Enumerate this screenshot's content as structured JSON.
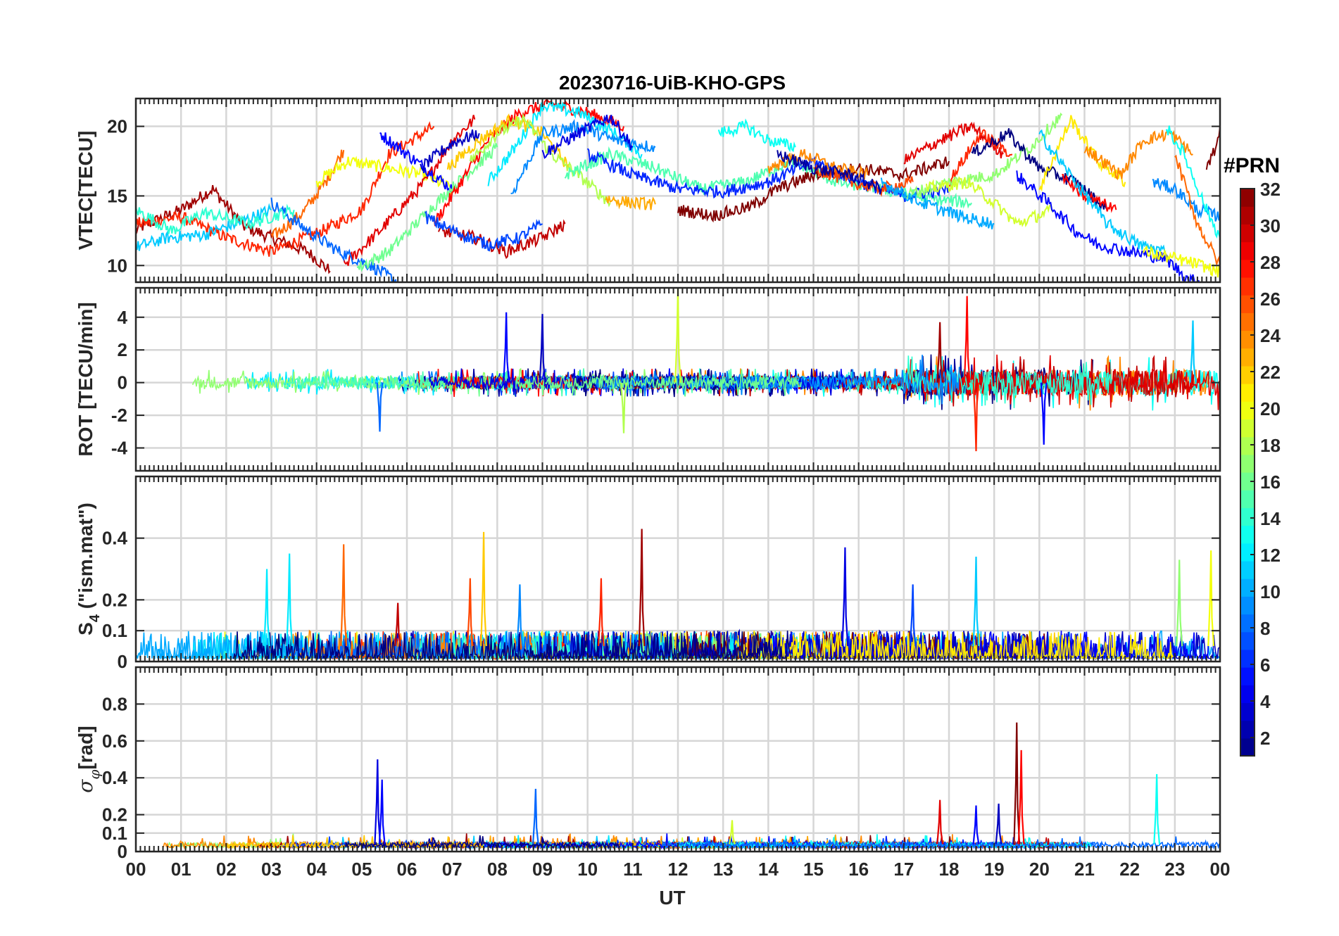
{
  "figure": {
    "title": "20230716-UiB-KHO-GPS",
    "xlabel": "UT",
    "x_ticks": [
      "00",
      "01",
      "02",
      "03",
      "04",
      "05",
      "06",
      "07",
      "08",
      "09",
      "10",
      "11",
      "12",
      "13",
      "14",
      "15",
      "16",
      "17",
      "18",
      "19",
      "20",
      "21",
      "22",
      "23",
      "00"
    ],
    "xlim": [
      0,
      24
    ]
  },
  "colorbar": {
    "title": "#PRN",
    "range": [
      1,
      32
    ],
    "ticks": [
      2,
      4,
      6,
      8,
      10,
      12,
      14,
      16,
      18,
      20,
      22,
      24,
      26,
      28,
      30,
      32
    ],
    "colormap": "jet"
  },
  "chart_data": [
    {
      "id": "vtec",
      "type": "line",
      "ylabel": "VTEC[TECU]",
      "ylim": [
        8.8,
        22
      ],
      "y_ticks": [
        10,
        15,
        20
      ],
      "grid": true,
      "series": [
        {
          "prn": 31,
          "t": [
            0.0,
            1.0,
            1.7,
            2.4,
            3.0,
            3.8,
            4.3
          ],
          "v": [
            12.6,
            14.0,
            15.5,
            12.8,
            12.0,
            11.0,
            9.6
          ]
        },
        {
          "prn": 27,
          "t": [
            0.0,
            1.0,
            2.0,
            3.0,
            4.2,
            5.0,
            5.6,
            6.6
          ],
          "v": [
            13.0,
            13.5,
            12.0,
            11.0,
            12.6,
            14.0,
            18.0,
            20.0
          ]
        },
        {
          "prn": 25,
          "t": [
            3.0,
            3.7,
            4.2,
            4.6
          ],
          "v": [
            12.0,
            13.8,
            16.0,
            18.3
          ]
        },
        {
          "prn": 20,
          "t": [
            4.0,
            4.7,
            5.6,
            6.4,
            7.0
          ],
          "v": [
            16.0,
            17.5,
            17.0,
            16.5,
            15.5
          ]
        },
        {
          "prn": 29,
          "t": [
            4.6,
            5.4,
            6.4,
            7.0,
            7.5
          ],
          "v": [
            10.0,
            12.5,
            16.0,
            19.0,
            20.5
          ]
        },
        {
          "prn": 5,
          "t": [
            5.4,
            6.0,
            6.6,
            7.0
          ],
          "v": [
            19.5,
            18.0,
            16.5,
            15.5
          ]
        },
        {
          "prn": 8,
          "t": [
            3.0,
            3.8,
            4.5,
            5.2,
            5.8
          ],
          "v": [
            14.5,
            12.5,
            11.0,
            10.0,
            8.8
          ]
        },
        {
          "prn": 11,
          "t": [
            0.0,
            0.7,
            1.5,
            2.2,
            3.0
          ],
          "v": [
            11.3,
            12.0,
            12.2,
            13.0,
            14.0
          ]
        },
        {
          "prn": 14,
          "t": [
            0.0,
            0.8,
            1.5,
            2.5,
            3.5
          ],
          "v": [
            14.0,
            12.5,
            13.8,
            13.0,
            14.0
          ]
        },
        {
          "prn": 16,
          "t": [
            4.9,
            5.6,
            6.5,
            7.3,
            8.0
          ],
          "v": [
            9.8,
            11.0,
            14.0,
            16.5,
            18.5
          ]
        },
        {
          "prn": 3,
          "t": [
            6.3,
            7.0,
            7.6
          ],
          "v": [
            17.0,
            18.8,
            19.5
          ]
        },
        {
          "prn": 28,
          "t": [
            6.6,
            7.2,
            7.8,
            8.5,
            9.2,
            10.0,
            10.8
          ],
          "v": [
            13.0,
            16.0,
            19.0,
            21.0,
            21.6,
            21.0,
            20.0
          ]
        },
        {
          "prn": 22,
          "t": [
            6.9,
            7.6,
            8.3,
            9.0,
            9.6
          ],
          "v": [
            17.0,
            19.0,
            20.5,
            19.5,
            17.0
          ]
        },
        {
          "prn": 12,
          "t": [
            7.8,
            8.4,
            9.0,
            9.8,
            10.6,
            11.2
          ],
          "v": [
            16.0,
            18.5,
            21.5,
            21.0,
            19.5,
            18.0
          ]
        },
        {
          "prn": 18,
          "t": [
            7.4,
            8.0,
            8.6,
            9.2,
            9.8,
            10.5
          ],
          "v": [
            17.5,
            19.5,
            20.5,
            18.0,
            16.5,
            14.5
          ]
        },
        {
          "prn": 9,
          "t": [
            8.3,
            9.0,
            9.8,
            10.6,
            11.5
          ],
          "v": [
            15.0,
            19.5,
            20.0,
            19.0,
            18.5
          ]
        },
        {
          "prn": 4,
          "t": [
            9.0,
            9.8,
            10.5,
            11.0
          ],
          "v": [
            18.0,
            19.5,
            20.7,
            18.5
          ]
        },
        {
          "prn": 30,
          "t": [
            6.7,
            7.5,
            8.2,
            9.0,
            9.5
          ],
          "v": [
            12.5,
            12.0,
            11.0,
            12.0,
            13.0
          ]
        },
        {
          "prn": 7,
          "t": [
            6.4,
            7.0,
            7.8,
            8.5,
            9.0
          ],
          "v": [
            13.5,
            12.5,
            11.5,
            12.0,
            13.0
          ]
        },
        {
          "prn": 15,
          "t": [
            9.5,
            10.5,
            11.5,
            12.5,
            13.5,
            14.5,
            15.5,
            16.5,
            17.5,
            18.5
          ],
          "v": [
            16.5,
            18.0,
            17.0,
            15.5,
            16.0,
            17.5,
            16.0,
            15.5,
            14.8,
            14.5
          ]
        },
        {
          "prn": 23,
          "t": [
            10.4,
            11.0,
            11.5
          ],
          "v": [
            14.8,
            14.5,
            14.4
          ]
        },
        {
          "prn": 6,
          "t": [
            10.0,
            11.0,
            12.0,
            13.0,
            14.0,
            15.0,
            16.0,
            17.0,
            18.0
          ],
          "v": [
            18.0,
            16.5,
            15.5,
            15.3,
            16.0,
            17.5,
            16.0,
            15.0,
            15.5
          ]
        },
        {
          "prn": 32,
          "t": [
            12.0,
            12.8,
            13.6,
            14.2,
            15.0,
            16.0,
            17.0,
            18.0
          ],
          "v": [
            14.0,
            13.6,
            14.2,
            15.5,
            16.5,
            17.0,
            16.5,
            17.5
          ]
        },
        {
          "prn": 13,
          "t": [
            12.9,
            13.5,
            14.0,
            14.6
          ],
          "v": [
            19.5,
            20.0,
            19.0,
            18.5
          ]
        },
        {
          "prn": 24,
          "t": [
            14.0,
            14.8,
            15.5,
            16.2
          ],
          "v": [
            17.0,
            18.0,
            17.0,
            16.5
          ]
        },
        {
          "prn": 26,
          "t": [
            15.0,
            15.8,
            16.5,
            17.2
          ],
          "v": [
            17.0,
            16.0,
            15.5,
            16.0
          ]
        },
        {
          "prn": 2,
          "t": [
            14.2,
            15.0,
            15.8,
            16.5
          ],
          "v": [
            18.0,
            17.0,
            16.5,
            15.5
          ]
        },
        {
          "prn": 29,
          "t": [
            17.0,
            17.8,
            18.5,
            19.2
          ],
          "v": [
            17.5,
            19.0,
            20.0,
            18.0
          ]
        },
        {
          "prn": 27,
          "t": [
            18.0,
            18.7,
            19.4
          ],
          "v": [
            16.0,
            19.5,
            18.0
          ]
        },
        {
          "prn": 17,
          "t": [
            17.0,
            18.0,
            19.0,
            19.8,
            20.5
          ],
          "v": [
            15.0,
            16.0,
            16.5,
            18.5,
            20.8
          ]
        },
        {
          "prn": 19,
          "t": [
            17.5,
            18.4,
            19.0,
            19.5,
            20.3
          ],
          "v": [
            15.5,
            16.0,
            14.5,
            13.0,
            14.0
          ]
        },
        {
          "prn": 10,
          "t": [
            16.5,
            17.4,
            18.3,
            19.0
          ],
          "v": [
            16.0,
            14.5,
            13.5,
            13.0
          ]
        },
        {
          "prn": 1,
          "t": [
            18.5,
            19.3,
            20.0,
            20.8,
            21.5
          ],
          "v": [
            18.0,
            19.5,
            17.0,
            16.0,
            14.0
          ]
        },
        {
          "prn": 5,
          "t": [
            19.5,
            20.2,
            20.8,
            21.3,
            22.0,
            22.8,
            23.3,
            23.6
          ],
          "v": [
            16.5,
            14.5,
            12.5,
            11.5,
            11.0,
            10.5,
            9.0,
            8.8
          ]
        },
        {
          "prn": 21,
          "t": [
            20.0,
            20.7,
            21.3,
            21.9
          ],
          "v": [
            15.5,
            20.5,
            17.5,
            16.0
          ]
        },
        {
          "prn": 28,
          "t": [
            20.5,
            21.0,
            21.7
          ],
          "v": [
            16.5,
            15.0,
            14.0
          ]
        },
        {
          "prn": 11,
          "t": [
            20.0,
            20.8,
            21.5,
            22.2,
            22.8
          ],
          "v": [
            19.5,
            16.0,
            13.0,
            11.5,
            11.0
          ]
        },
        {
          "prn": 24,
          "t": [
            21.0,
            21.8,
            22.3,
            22.9,
            23.4
          ],
          "v": [
            18.5,
            16.5,
            19.0,
            19.5,
            18.0
          ]
        },
        {
          "prn": 9,
          "t": [
            22.5,
            23.0,
            23.5,
            24.0
          ],
          "v": [
            16.0,
            15.5,
            14.0,
            13.5
          ]
        },
        {
          "prn": 13,
          "t": [
            22.8,
            23.2,
            23.7,
            24.0
          ],
          "v": [
            20.0,
            18.0,
            14.0,
            12.0
          ]
        },
        {
          "prn": 20,
          "t": [
            22.3,
            23.0,
            23.6,
            24.0
          ],
          "v": [
            11.0,
            10.5,
            10.0,
            9.5
          ]
        },
        {
          "prn": 25,
          "t": [
            23.0,
            23.5,
            24.0
          ],
          "v": [
            18.0,
            13.0,
            10.0
          ]
        },
        {
          "prn": 32,
          "t": [
            23.7,
            23.9,
            24.0
          ],
          "v": [
            17.0,
            18.5,
            20.0
          ]
        }
      ]
    },
    {
      "id": "rot",
      "type": "line",
      "ylabel": "ROT [TECU/min]",
      "ylim": [
        -5.4,
        5.8
      ],
      "y_ticks": [
        -4,
        -2,
        0,
        2,
        4
      ],
      "grid": true,
      "note": "noise around 0 with amplitude growing after 17 UT",
      "spikes": [
        {
          "prn": 5,
          "t": 8.2,
          "v": 4.3
        },
        {
          "prn": 3,
          "t": 9.0,
          "v": 4.2
        },
        {
          "prn": 19,
          "t": 12.0,
          "v": 5.8
        },
        {
          "prn": 28,
          "t": 18.4,
          "v": 5.3
        },
        {
          "prn": 27,
          "t": 18.6,
          "v": -4.2
        },
        {
          "prn": 31,
          "t": 17.8,
          "v": 3.7
        },
        {
          "prn": 11,
          "t": 23.4,
          "v": 3.8
        },
        {
          "prn": 8,
          "t": 5.4,
          "v": -3.0
        },
        {
          "prn": 5,
          "t": 20.1,
          "v": -3.8
        },
        {
          "prn": 18,
          "t": 10.8,
          "v": -3.1
        }
      ]
    },
    {
      "id": "s4",
      "type": "line",
      "ylabel": "S4 (\"ism.mat\")",
      "ylim": [
        0,
        0.6
      ],
      "y_ticks": [
        0,
        0.1,
        0.2,
        0.4
      ],
      "tick_labels": [
        "0",
        "0.1",
        "0.2",
        "0.4"
      ],
      "grid": true,
      "spikes": [
        {
          "prn": 12,
          "t": 2.9,
          "v": 0.3
        },
        {
          "prn": 12,
          "t": 3.4,
          "v": 0.35
        },
        {
          "prn": 25,
          "t": 4.6,
          "v": 0.38
        },
        {
          "prn": 30,
          "t": 5.8,
          "v": 0.19
        },
        {
          "prn": 22,
          "t": 7.7,
          "v": 0.42
        },
        {
          "prn": 26,
          "t": 7.4,
          "v": 0.27
        },
        {
          "prn": 9,
          "t": 8.5,
          "v": 0.25
        },
        {
          "prn": 27,
          "t": 10.3,
          "v": 0.27
        },
        {
          "prn": 31,
          "t": 11.2,
          "v": 0.43
        },
        {
          "prn": 4,
          "t": 15.7,
          "v": 0.37
        },
        {
          "prn": 7,
          "t": 17.2,
          "v": 0.25
        },
        {
          "prn": 11,
          "t": 18.6,
          "v": 0.34
        },
        {
          "prn": 17,
          "t": 23.1,
          "v": 0.33
        },
        {
          "prn": 20,
          "t": 23.8,
          "v": 0.36
        }
      ]
    },
    {
      "id": "sigma_phi",
      "type": "line",
      "ylabel": "σφ[rad]",
      "ylim": [
        0,
        1.0
      ],
      "y_ticks": [
        0,
        0.1,
        0.2,
        0.4,
        0.6,
        0.8
      ],
      "tick_labels": [
        "0",
        "0.1",
        "0.2",
        "0.4",
        "0.6",
        "0.8"
      ],
      "grid": true,
      "spikes": [
        {
          "prn": 4,
          "t": 5.35,
          "v": 0.5
        },
        {
          "prn": 5,
          "t": 5.45,
          "v": 0.39
        },
        {
          "prn": 8,
          "t": 8.85,
          "v": 0.34
        },
        {
          "prn": 19,
          "t": 13.2,
          "v": 0.17
        },
        {
          "prn": 29,
          "t": 17.8,
          "v": 0.28
        },
        {
          "prn": 5,
          "t": 18.6,
          "v": 0.25
        },
        {
          "prn": 3,
          "t": 19.1,
          "v": 0.26
        },
        {
          "prn": 32,
          "t": 19.5,
          "v": 0.7
        },
        {
          "prn": 28,
          "t": 19.6,
          "v": 0.55
        },
        {
          "prn": 13,
          "t": 22.6,
          "v": 0.42
        }
      ]
    }
  ]
}
